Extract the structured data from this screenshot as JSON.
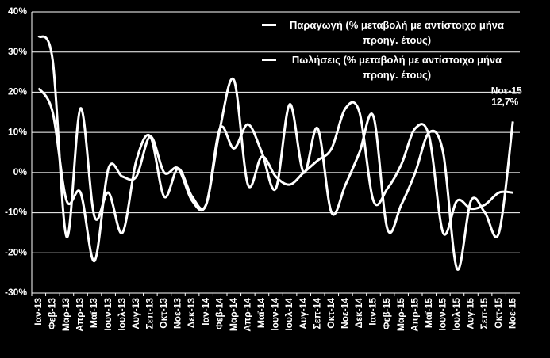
{
  "chart_data": {
    "type": "line",
    "categories": [
      "Ιαν-13",
      "Φεβ-13",
      "Μαρ-13",
      "Απρ-13",
      "Μαϊ-13",
      "Ιουν-13",
      "Ιουλ-13",
      "Αυγ-13",
      "Σεπ-13",
      "Οκτ-13",
      "Νοε-13",
      "Δεκ-13",
      "Ιαν-14",
      "Φεβ-14",
      "Μαρ-14",
      "Απρ-14",
      "Μαϊ-14",
      "Ιουν-14",
      "Ιουλ-14",
      "Αυγ-14",
      "Σεπ-14",
      "Οκτ-14",
      "Νοε-14",
      "Δεκ-14",
      "Ιαν-15",
      "Φεβ-15",
      "Μαρ-15",
      "Απρ-15",
      "Μαϊ-15",
      "Ιουν-15",
      "Ιουλ-15",
      "Αυγ-15",
      "Σεπ-15",
      "Οκτ-15",
      "Νοε-15"
    ],
    "series": [
      {
        "name": "Παραγωγή (% μεταβολή με αντίστοιχο μήνα προηγ. έτους)",
        "color": "#ffffff",
        "values": [
          34,
          28,
          -16,
          16,
          -11,
          -5,
          -15,
          3,
          9,
          -6,
          1,
          -6,
          -8,
          11,
          6,
          12,
          5,
          -4,
          17,
          0,
          11,
          -10,
          -3,
          5,
          14,
          -14,
          -8,
          0,
          10,
          5,
          -24,
          -7,
          -10,
          -15,
          12.7
        ],
        "value_labels": [
          null,
          null,
          null,
          null,
          null,
          null,
          null,
          null,
          null,
          null,
          null,
          null,
          null,
          null,
          null,
          null,
          null,
          null,
          null,
          null,
          null,
          null,
          null,
          null,
          null,
          null,
          null,
          null,
          null,
          null,
          null,
          null,
          null,
          null,
          "12,7%"
        ]
      },
      {
        "name": "Πωλήσεις (% μεταβολή με αντίστοιχο μήνα προηγ. έτους)",
        "color": "#ffffff",
        "values": [
          21,
          15,
          -7,
          -5,
          -22,
          1,
          -1,
          -1,
          9,
          0,
          1,
          -7,
          -8,
          11,
          23,
          -3,
          4,
          -1,
          -3,
          0,
          3,
          6,
          16,
          15,
          -7,
          -4,
          2,
          11,
          9,
          -15,
          -7,
          -9,
          -8,
          -5,
          -5
        ]
      }
    ],
    "ylim": [
      -30,
      40
    ],
    "yticks": [
      {
        "value": -30,
        "label": "-30%"
      },
      {
        "value": -20,
        "label": "-20%"
      },
      {
        "value": -10,
        "label": "-10%"
      },
      {
        "value": 0,
        "label": "0%"
      },
      {
        "value": 10,
        "label": "10%"
      },
      {
        "value": 20,
        "label": "20%"
      },
      {
        "value": 30,
        "label": "30%"
      },
      {
        "value": 40,
        "label": "40%"
      }
    ],
    "grid": true,
    "legend": "top"
  }
}
